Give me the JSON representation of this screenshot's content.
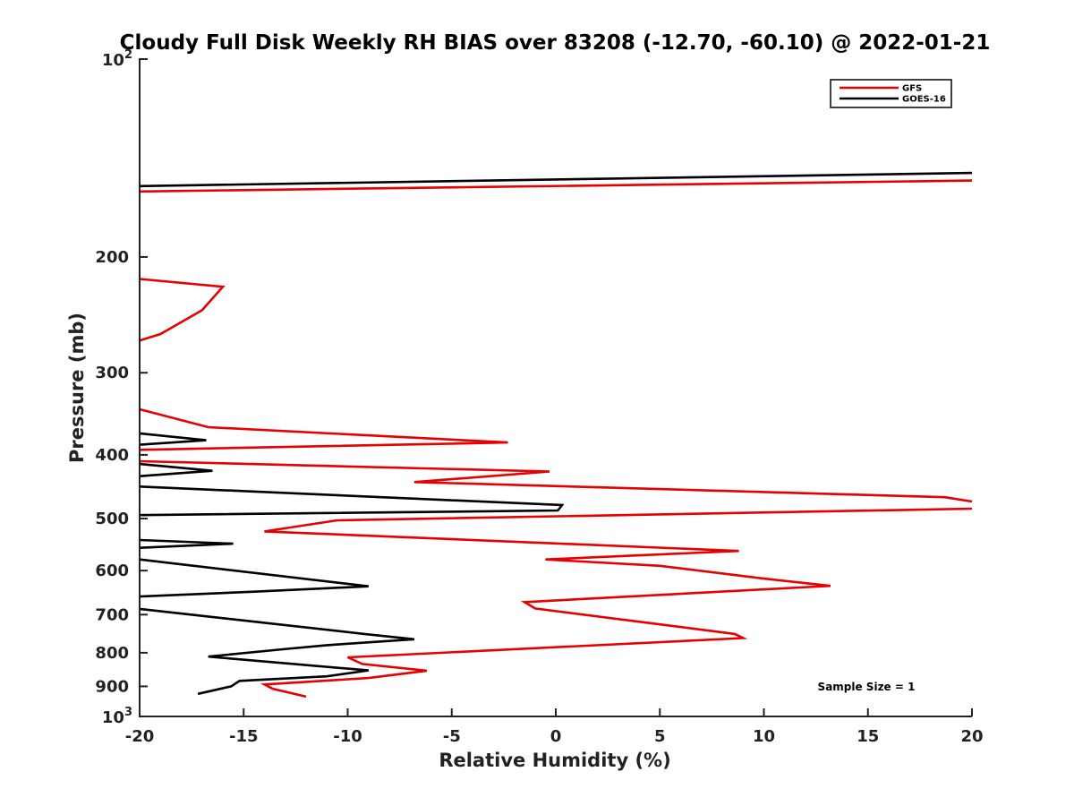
{
  "chart_data": {
    "type": "line",
    "title": "Cloudy Full Disk Weekly RH BIAS over 83208 (-12.70, -60.10) @ 2022-01-21",
    "xlabel": "Relative Humidity (%)",
    "ylabel": "Pressure (mb)",
    "xlim": [
      -20,
      20
    ],
    "ylim": [
      100,
      1000
    ],
    "yscale": "log",
    "y_reversed": true,
    "x_ticks": [
      -20,
      -15,
      -10,
      -5,
      0,
      5,
      10,
      15,
      20
    ],
    "x_tick_labels": [
      "-20",
      "-15",
      "-10",
      "-5",
      "0",
      "5",
      "10",
      "15",
      "20"
    ],
    "y_ticks": [
      200,
      300,
      400,
      500,
      600,
      700,
      800,
      900
    ],
    "y_tick_labels": [
      "200",
      "300",
      "400",
      "500",
      "600",
      "700",
      "800",
      "900"
    ],
    "y_log_ticks": [
      {
        "base": "10",
        "exp": "2",
        "value": 100
      },
      {
        "base": "10",
        "exp": "3",
        "value": 1000
      }
    ],
    "legend_position": "top-right",
    "annotation": "Sample Size = 1",
    "grid": false,
    "series": [
      {
        "name": "GFS",
        "color": "#e60000",
        "segments": [
          [
            [
              20,
              153
            ],
            [
              -20,
              159
            ]
          ],
          [
            [
              -20,
              216
            ],
            [
              -16.0,
              222
            ],
            [
              -17.0,
              241
            ],
            [
              -19.0,
              262
            ],
            [
              -20,
              268
            ]
          ],
          [
            [
              -20,
              341
            ],
            [
              -16.7,
              363
            ],
            [
              -2.3,
              383
            ],
            [
              -20,
              393
            ]
          ],
          [
            [
              -20,
              409
            ],
            [
              -0.3,
              424
            ],
            [
              -6.8,
              440
            ],
            [
              18.7,
              464
            ],
            [
              20,
              471
            ]
          ],
          [
            [
              20,
              483
            ],
            [
              -10.5,
              503
            ],
            [
              -14.0,
              523
            ],
            [
              8.8,
              560
            ],
            [
              -0.5,
              577
            ],
            [
              5.0,
              590
            ],
            [
              10.0,
              617
            ],
            [
              13.2,
              633
            ],
            [
              -1.5,
              670
            ],
            [
              -1.0,
              685
            ],
            [
              8.6,
              749
            ],
            [
              9.0,
              760
            ],
            [
              -10.0,
              813
            ],
            [
              -9.3,
              832
            ],
            [
              -6.2,
              852
            ],
            [
              -9.0,
              874
            ],
            [
              -14.0,
              894
            ],
            [
              -13.6,
              908
            ],
            [
              -12.0,
              933
            ]
          ]
        ]
      },
      {
        "name": "GOES-16",
        "color": "#000000",
        "segments": [
          [
            [
              20,
              149
            ],
            [
              -20,
              156
            ]
          ],
          [
            [
              -20,
              371
            ],
            [
              -16.8,
              380
            ],
            [
              -20,
              386
            ]
          ],
          [
            [
              -20,
              413
            ],
            [
              -16.5,
              423
            ],
            [
              -20,
              431
            ]
          ],
          [
            [
              -20,
              447
            ],
            [
              0.3,
              477
            ],
            [
              0.1,
              486
            ],
            [
              -20,
              494
            ]
          ],
          [
            [
              -20,
              539
            ],
            [
              -15.5,
              546
            ],
            [
              -20,
              554
            ]
          ],
          [
            [
              -20,
              577
            ],
            [
              -9.0,
              634
            ],
            [
              -14.5,
              646
            ],
            [
              -20,
              657
            ]
          ],
          [
            [
              -20,
              686
            ],
            [
              -9.2,
              749
            ],
            [
              -6.8,
              763
            ],
            [
              -11.0,
              779
            ],
            [
              -12.9,
              789
            ],
            [
              -16.7,
              811
            ],
            [
              -9.0,
              851
            ],
            [
              -11.0,
              869
            ],
            [
              -15.2,
              883
            ],
            [
              -15.6,
              900
            ],
            [
              -17.2,
              924
            ]
          ]
        ]
      }
    ]
  }
}
